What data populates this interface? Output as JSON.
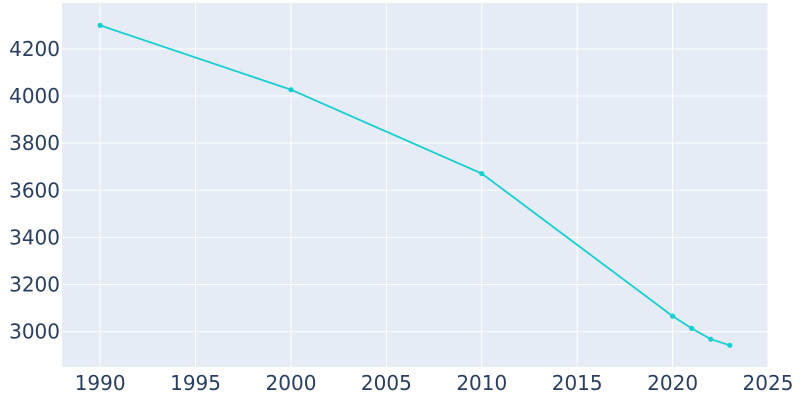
{
  "chart_data": {
    "type": "line",
    "title": "",
    "xlabel": "",
    "ylabel": "",
    "xlim": [
      1988,
      2025
    ],
    "ylim": [
      2850,
      4395
    ],
    "x_ticks": [
      1990,
      1995,
      2000,
      2005,
      2010,
      2015,
      2020,
      2025
    ],
    "y_ticks": [
      3000,
      3200,
      3400,
      3600,
      3800,
      4000,
      4200
    ],
    "grid": true,
    "legend": "none",
    "series": [
      {
        "x": [
          1990,
          2000,
          2010,
          2020,
          2021,
          2022,
          2023
        ],
        "values": [
          4300,
          4027,
          3671,
          3066,
          3014,
          2968,
          2942
        ]
      }
    ]
  },
  "colors": {
    "plot_background": "#e5ecf6",
    "grid": "#ffffff",
    "line": "#17cfcf",
    "text": "#2a3f5f"
  }
}
